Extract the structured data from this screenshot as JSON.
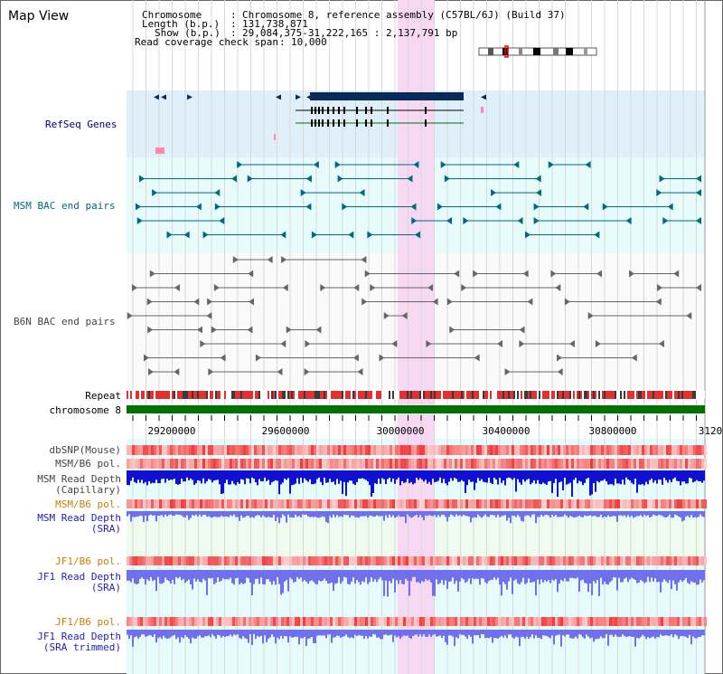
{
  "page": {
    "title": "Map View",
    "info": {
      "chromosome_label": "Chromosome",
      "chromosome_value": "Chromosome 8, reference assembly (C57BL/6J) (Build 37)",
      "length_label": "Length (b.p.)",
      "length_value": "131,738,871",
      "show_label": "Show (b.p.)",
      "show_value": "29,084,375-31,222,165 : 2,137,791 bp",
      "coverage_label": "Read coverage check span",
      "coverage_value": "10,000"
    }
  },
  "tracks": {
    "refseq": "RefSeq Genes",
    "msm_bac": "MSM BAC end pairs",
    "b6n_bac": "B6N BAC end pairs",
    "repeat": "Repeat",
    "chromosome": "chromosome 8",
    "dbsnp": "dbSNP(Mouse)",
    "msm_b6_pol": "MSM/B6 pol.",
    "msm_depth_cap_1": "MSM Read Depth",
    "msm_depth_cap_2": "(Capillary)",
    "msm_b6_pol_sra": "MSM/B6 pol.",
    "msm_depth_sra_1": "MSM Read Depth",
    "msm_depth_sra_2": "(SRA)",
    "jf1_b6_pol": "JF1/B6 pol.",
    "jf1_depth_1": "JF1 Read Depth",
    "jf1_depth_2": "(SRA)",
    "jf1_b6_pol_trim": "JF1/B6 pol.",
    "jf1_trim_1": "JF1 Read Depth",
    "jf1_trim_2": "(SRA trimmed)"
  },
  "axis": {
    "ticks": [
      "29200000",
      "29600000",
      "30000000",
      "30400000",
      "30800000",
      "3120"
    ]
  },
  "colors": {
    "refseq_bg": "#dff0fb",
    "msm_bg": "#e8fbfb",
    "highlight": "#f6d8f3",
    "chromosome": "#007000",
    "label_blue": "#000080",
    "label_teal": "#006a80",
    "label_orange": "#c88000",
    "depth_blue": "#2020e0"
  }
}
